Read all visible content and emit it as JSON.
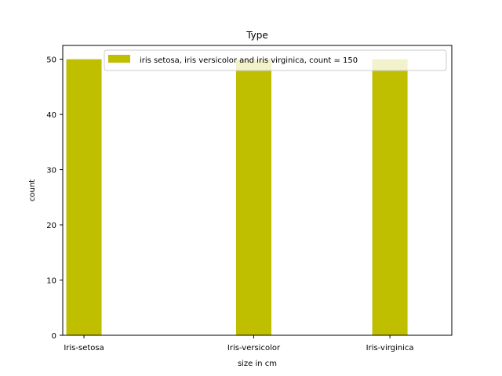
{
  "chart_data": {
    "type": "bar",
    "title": "Type",
    "xlabel": "size in cm",
    "ylabel": "count",
    "categories": [
      "Iris-setosa",
      "Iris-versicolor",
      "Iris-virginica"
    ],
    "x": [
      0.12,
      1.08,
      1.85
    ],
    "xlim": [
      0,
      2.2
    ],
    "ylim": [
      0,
      52.5
    ],
    "yticks": [
      0,
      10,
      20,
      30,
      40,
      50
    ],
    "series": [
      {
        "name": "iris setosa, iris versicolor and iris virginica, count = 150",
        "values": [
          50,
          50,
          50
        ],
        "color": "#bfbf00"
      }
    ],
    "legend": "top-right",
    "grid": false
  }
}
